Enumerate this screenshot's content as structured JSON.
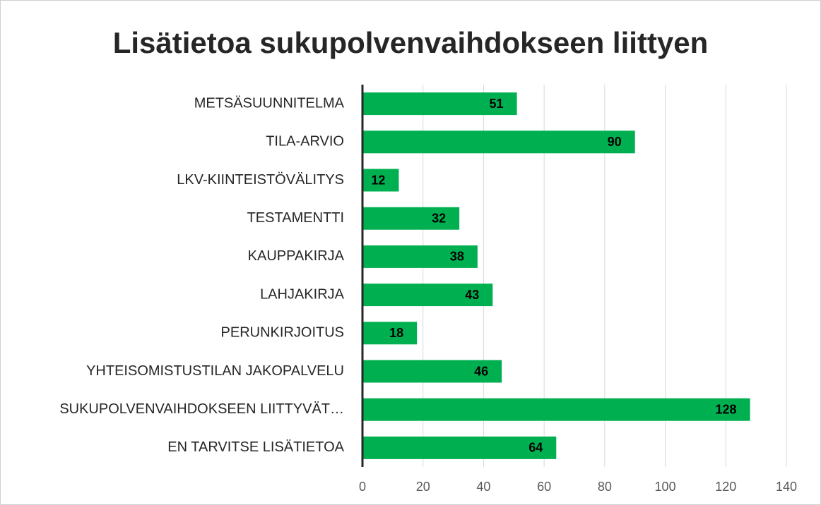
{
  "chart_data": {
    "type": "bar",
    "orientation": "horizontal",
    "title": "Lisätietoa sukupolvenvaihdokseen liittyen",
    "categories": [
      "METSÄSUUNNITELMA",
      "TILA-ARVIO",
      "LKV-KIINTEISTÖVÄLITYS",
      "TESTAMENTTI",
      "KAUPPAKIRJA",
      "LAHJAKIRJA",
      "PERUNKIRJOITUS",
      "YHTEISOMISTUSTILAN JAKOPALVELU",
      "SUKUPOLVENVAIHDOKSEEN LIITTYVÄT…",
      "EN TARVITSE LISÄTIETOA"
    ],
    "values": [
      51,
      90,
      12,
      32,
      38,
      43,
      18,
      46,
      128,
      64
    ],
    "color": "#00b050",
    "xlim": [
      0,
      140
    ],
    "xticks": [
      0,
      20,
      40,
      60,
      80,
      100,
      120,
      140
    ],
    "grid": true
  }
}
